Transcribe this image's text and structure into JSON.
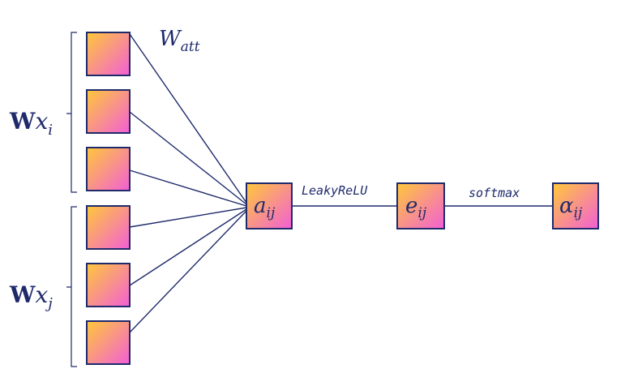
{
  "colors": {
    "stroke": "#1f2a6b",
    "gradient_start": "#ffc83a",
    "gradient_end": "#f25fd6"
  },
  "labels": {
    "weight": "W",
    "weight_sub": "att",
    "group_i_main": "W",
    "group_i_var": "x",
    "group_i_sub": "i",
    "group_j_main": "W",
    "group_j_var": "x",
    "group_j_sub": "j",
    "node_a_main": "a",
    "node_a_sub": "ij",
    "node_e_main": "e",
    "node_e_sub": "ij",
    "node_alpha_main": "α",
    "node_alpha_sub": "ij",
    "edge_1": "LeakyReLU",
    "edge_2": "softmax"
  }
}
